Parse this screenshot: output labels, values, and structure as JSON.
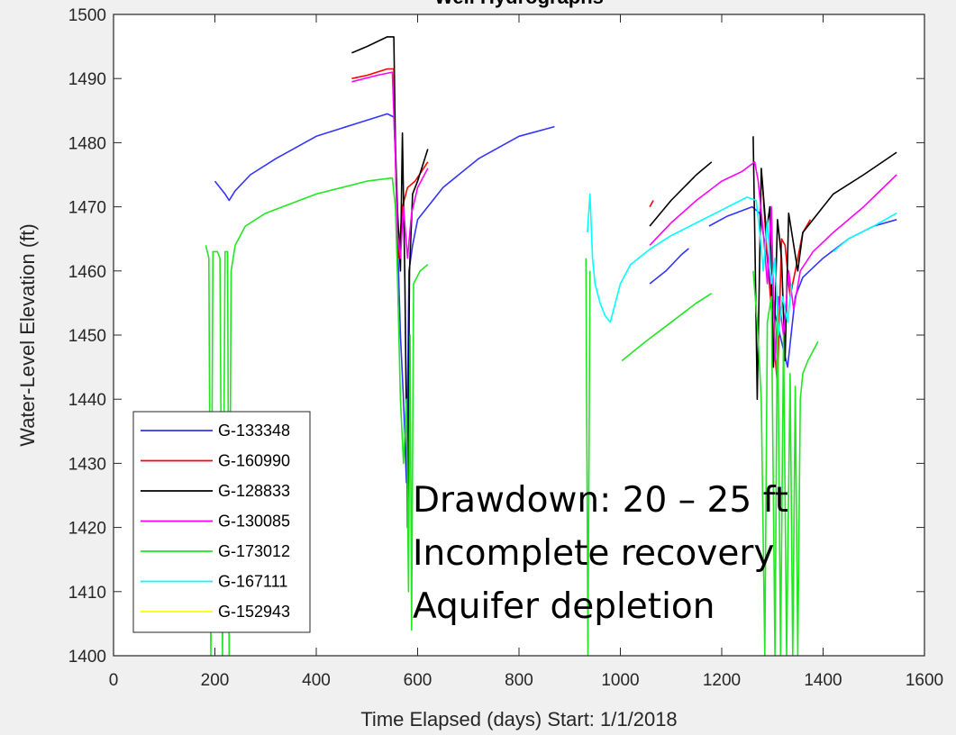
{
  "chart_data": {
    "type": "line",
    "title": "Well Hydrographs",
    "xlabel": "Time Elapsed (days) Start: 1/1/2018",
    "ylabel": "Water-Level Elevation (ft)",
    "xlim": [
      0,
      1600
    ],
    "ylim": [
      1400,
      1500
    ],
    "xticks": [
      0,
      200,
      400,
      600,
      800,
      1000,
      1200,
      1400,
      1600
    ],
    "yticks": [
      1400,
      1410,
      1420,
      1430,
      1440,
      1450,
      1460,
      1470,
      1480,
      1490,
      1500
    ],
    "grid": false,
    "legend_position": "bottom-left",
    "annotation": [
      "Drawdown: 20 – 25 ft",
      "Incomplete recovery",
      "Aquifer depletion"
    ],
    "series": [
      {
        "name": "G-133348",
        "color": "#3333ff",
        "segments": [
          [
            [
              200,
              1474
            ],
            [
              210,
              1473
            ],
            [
              220,
              1472
            ],
            [
              228,
              1471
            ],
            [
              240,
              1472.5
            ],
            [
              270,
              1475
            ],
            [
              320,
              1477.5
            ],
            [
              400,
              1481
            ],
            [
              480,
              1483
            ],
            [
              540,
              1484.5
            ],
            [
              553,
              1484
            ],
            [
              556,
              1478
            ],
            [
              560,
              1466
            ],
            [
              566,
              1450
            ],
            [
              572,
              1440
            ],
            [
              578,
              1427
            ],
            [
              583,
              1460
            ],
            [
              590,
              1464
            ],
            [
              600,
              1468
            ],
            [
              650,
              1473
            ],
            [
              720,
              1477.5
            ],
            [
              800,
              1481
            ],
            [
              870,
              1482.5
            ]
          ],
          [
            [
              1058,
              1458
            ],
            [
              1090,
              1460
            ],
            [
              1120,
              1462.5
            ],
            [
              1135,
              1463.5
            ]
          ],
          [
            [
              1175,
              1467
            ],
            [
              1210,
              1468.5
            ],
            [
              1260,
              1470
            ],
            [
              1275,
              1469
            ],
            [
              1290,
              1462
            ],
            [
              1300,
              1455
            ],
            [
              1315,
              1450
            ],
            [
              1330,
              1445
            ],
            [
              1345,
              1456
            ],
            [
              1360,
              1459
            ],
            [
              1400,
              1462
            ],
            [
              1450,
              1465
            ],
            [
              1500,
              1467
            ],
            [
              1545,
              1468
            ]
          ]
        ]
      },
      {
        "name": "G-160990",
        "color": "#ff0000",
        "segments": [
          [
            [
              470,
              1490
            ],
            [
              500,
              1490.5
            ],
            [
              540,
              1491.5
            ],
            [
              553,
              1491.5
            ],
            [
              557,
              1475
            ],
            [
              562,
              1462
            ],
            [
              570,
              1470
            ],
            [
              580,
              1473
            ],
            [
              595,
              1474
            ],
            [
              620,
              1477
            ]
          ],
          [
            [
              1058,
              1470
            ],
            [
              1065,
              1471
            ]
          ],
          [
            [
              1280,
              1474
            ],
            [
              1290,
              1462
            ],
            [
              1300,
              1452
            ],
            [
              1310,
              1442
            ],
            [
              1318,
              1465
            ],
            [
              1325,
              1464
            ],
            [
              1335,
              1456
            ],
            [
              1345,
              1460
            ],
            [
              1360,
              1466
            ],
            [
              1375,
              1468
            ]
          ]
        ]
      },
      {
        "name": "G-128833",
        "color": "#000000",
        "segments": [
          [
            [
              470,
              1494
            ],
            [
              500,
              1495
            ],
            [
              540,
              1496.5
            ],
            [
              553,
              1496.5
            ],
            [
              556,
              1480
            ],
            [
              560,
              1470
            ],
            [
              566,
              1460
            ],
            [
              570,
              1481.5
            ],
            [
              575,
              1458
            ],
            [
              580,
              1420
            ],
            [
              584,
              1460
            ],
            [
              590,
              1472
            ],
            [
              600,
              1474
            ],
            [
              620,
              1479
            ]
          ],
          [
            [
              1058,
              1467
            ],
            [
              1100,
              1471
            ],
            [
              1150,
              1475
            ],
            [
              1180,
              1477
            ]
          ],
          [
            [
              1262,
              1481
            ],
            [
              1266,
              1462
            ],
            [
              1270,
              1440
            ],
            [
              1278,
              1476
            ],
            [
              1288,
              1466
            ],
            [
              1295,
              1470
            ],
            [
              1302,
              1445
            ],
            [
              1310,
              1468
            ],
            [
              1318,
              1462
            ],
            [
              1325,
              1446
            ],
            [
              1332,
              1469
            ],
            [
              1340,
              1465
            ],
            [
              1350,
              1460
            ],
            [
              1360,
              1466
            ],
            [
              1380,
              1468
            ],
            [
              1420,
              1472
            ],
            [
              1480,
              1475
            ],
            [
              1545,
              1478.5
            ]
          ]
        ]
      },
      {
        "name": "G-130085",
        "color": "#ff00ff",
        "segments": [
          [
            [
              470,
              1489.5
            ],
            [
              520,
              1490.5
            ],
            [
              550,
              1491
            ],
            [
              556,
              1478
            ],
            [
              560,
              1466
            ],
            [
              566,
              1462
            ],
            [
              572,
              1470
            ],
            [
              580,
              1462
            ],
            [
              588,
              1469
            ],
            [
              600,
              1473
            ],
            [
              620,
              1476
            ]
          ],
          [
            [
              1058,
              1464
            ],
            [
              1100,
              1467.5
            ],
            [
              1150,
              1471
            ],
            [
              1200,
              1474
            ],
            [
              1240,
              1475.5
            ],
            [
              1265,
              1477
            ],
            [
              1272,
              1474
            ],
            [
              1282,
              1466
            ],
            [
              1290,
              1458
            ],
            [
              1298,
              1470
            ],
            [
              1305,
              1446
            ],
            [
              1312,
              1456
            ],
            [
              1322,
              1450
            ],
            [
              1332,
              1460
            ],
            [
              1342,
              1454
            ],
            [
              1355,
              1460
            ],
            [
              1380,
              1463
            ],
            [
              1420,
              1466
            ],
            [
              1480,
              1470
            ],
            [
              1545,
              1475
            ]
          ]
        ]
      },
      {
        "name": "G-173012",
        "color": "#22e622",
        "segments": [
          [
            [
              182,
              1464
            ],
            [
              188,
              1462
            ],
            [
              192,
              1400
            ],
            [
              196,
              1463
            ],
            [
              205,
              1463
            ],
            [
              210,
              1462
            ],
            [
              215,
              1400
            ],
            [
              220,
              1463
            ],
            [
              225,
              1463
            ],
            [
              228,
              1400
            ],
            [
              232,
              1460
            ],
            [
              240,
              1464
            ],
            [
              260,
              1467
            ],
            [
              300,
              1469
            ],
            [
              400,
              1472
            ],
            [
              500,
              1474
            ],
            [
              550,
              1474.5
            ],
            [
              556,
              1470
            ],
            [
              560,
              1460
            ],
            [
              566,
              1440
            ],
            [
              572,
              1430
            ],
            [
              578,
              1440
            ],
            [
              582,
              1410
            ],
            [
              585,
              1450
            ],
            [
              588,
              1404
            ],
            [
              592,
              1458
            ],
            [
              605,
              1460
            ],
            [
              620,
              1461
            ]
          ],
          [
            [
              932,
              1462
            ],
            [
              936,
              1400
            ],
            [
              940,
              1460
            ]
          ],
          [
            [
              1003,
              1446
            ],
            [
              1050,
              1449
            ],
            [
              1100,
              1452
            ],
            [
              1150,
              1455
            ],
            [
              1180,
              1456.5
            ]
          ],
          [
            [
              1262,
              1460
            ],
            [
              1270,
              1452
            ],
            [
              1278,
              1440
            ],
            [
              1285,
              1400
            ],
            [
              1290,
              1452
            ],
            [
              1298,
              1456
            ],
            [
              1305,
              1400
            ],
            [
              1310,
              1456
            ],
            [
              1316,
              1400
            ],
            [
              1322,
              1450
            ],
            [
              1328,
              1400
            ],
            [
              1335,
              1444
            ],
            [
              1340,
              1400
            ],
            [
              1345,
              1442
            ],
            [
              1350,
              1400
            ],
            [
              1355,
              1440
            ],
            [
              1360,
              1444
            ],
            [
              1370,
              1446
            ],
            [
              1390,
              1449
            ]
          ]
        ]
      },
      {
        "name": "G-167111",
        "color": "#00ffff",
        "segments": [
          [
            [
              935,
              1466
            ],
            [
              940,
              1472
            ],
            [
              945,
              1462
            ],
            [
              950,
              1458
            ],
            [
              960,
              1455
            ],
            [
              970,
              1453
            ],
            [
              980,
              1452
            ],
            [
              990,
              1455
            ],
            [
              1000,
              1458
            ],
            [
              1020,
              1461
            ],
            [
              1060,
              1463.5
            ],
            [
              1100,
              1465.5
            ],
            [
              1150,
              1467.5
            ],
            [
              1200,
              1469.5
            ],
            [
              1250,
              1471.5
            ],
            [
              1268,
              1471
            ],
            [
              1275,
              1466
            ],
            [
              1282,
              1460
            ],
            [
              1290,
              1468
            ],
            [
              1298,
              1458
            ],
            [
              1305,
              1462
            ],
            [
              1312,
              1450
            ],
            [
              1320,
              1456
            ],
            [
              1330,
              1452
            ],
            [
              1338,
              1458
            ]
          ],
          [
            [
              1420,
              1463
            ],
            [
              1450,
              1465
            ],
            [
              1500,
              1467
            ],
            [
              1545,
              1469
            ]
          ]
        ]
      },
      {
        "name": "G-152943",
        "color": "#ffff00",
        "segments": []
      }
    ]
  }
}
